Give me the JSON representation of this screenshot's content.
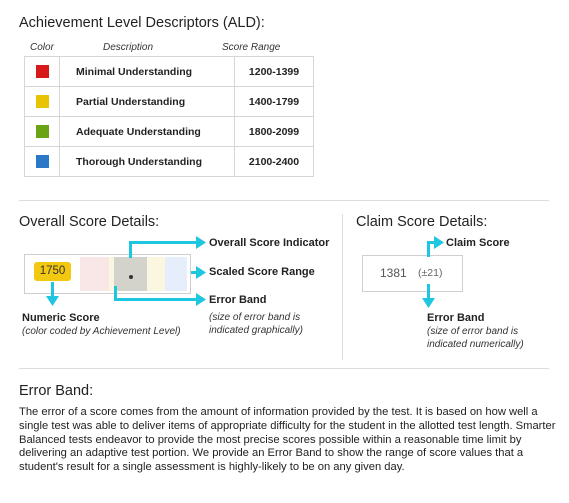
{
  "ald": {
    "title": "Achievement Level Descriptors (ALD):",
    "headers": {
      "color": "Color",
      "description": "Description",
      "range": "Score Range"
    },
    "rows": [
      {
        "color": "#d7191c",
        "description": "Minimal Understanding",
        "range": "1200-1399"
      },
      {
        "color": "#e8c400",
        "description": "Partial Understanding",
        "range": "1400-1799"
      },
      {
        "color": "#6aa313",
        "description": "Adequate Understanding",
        "range": "1800-2099"
      },
      {
        "color": "#2b78c8",
        "description": "Thorough Understanding",
        "range": "2100-2400"
      }
    ]
  },
  "overall": {
    "title": "Overall Score Details:",
    "score": "1750",
    "indicator_label": "Overall Score Indicator",
    "range_label": "Scaled Score Range",
    "error_band_label": "Error Band",
    "error_band_note": [
      "(size of error band is",
      "indicated graphically)"
    ],
    "numeric_label": "Numeric Score",
    "numeric_note": "(color coded by Achievement Level)"
  },
  "claim": {
    "title": "Claim Score Details:",
    "score": "1381",
    "error": "(±21)",
    "label": "Claim Score",
    "error_band_label": "Error Band",
    "error_band_note": [
      "(size of error band is",
      "indicated numerically)"
    ]
  },
  "error_band": {
    "title": "Error Band:",
    "text": "The error of a score comes from the amount of information provided by the test. It is based on how well a single test was able to deliver items of appropriate difficulty for the student in the allotted test length. Smarter Balanced tests endeavor to provide the most precise scores possible within a reasonable time limit by delivering an adaptive test portion.  We provide an Error Band to show the range of score values that a student's result for a single assessment is highly-likely to be on any given day."
  },
  "colors": {
    "accent": "#1ec6df",
    "badge": "#f2c811"
  }
}
